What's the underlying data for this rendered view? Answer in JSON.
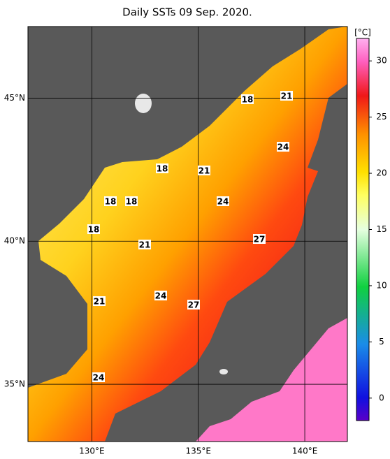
{
  "map": {
    "title": "Daily SSTs 09 Sep. 2020.",
    "xlim": [
      127,
      142
    ],
    "ylim": [
      33,
      47.5
    ],
    "xticks": [
      {
        "value": 130,
        "label": "130°E"
      },
      {
        "value": 135,
        "label": "135°E"
      },
      {
        "value": 140,
        "label": "140°E"
      }
    ],
    "yticks": [
      {
        "value": 45,
        "label": "45°N"
      },
      {
        "value": 40,
        "label": "40°N"
      },
      {
        "value": 35,
        "label": "35°N"
      }
    ],
    "colorbar": {
      "unit": "[°C]",
      "clim": [
        -2,
        32
      ],
      "ticks": [
        0,
        5,
        10,
        15,
        20,
        25,
        30
      ]
    },
    "contour_labels": [
      18,
      21,
      24,
      18,
      21,
      24,
      18,
      18,
      18,
      21,
      27,
      24,
      21,
      27,
      24
    ]
  }
}
